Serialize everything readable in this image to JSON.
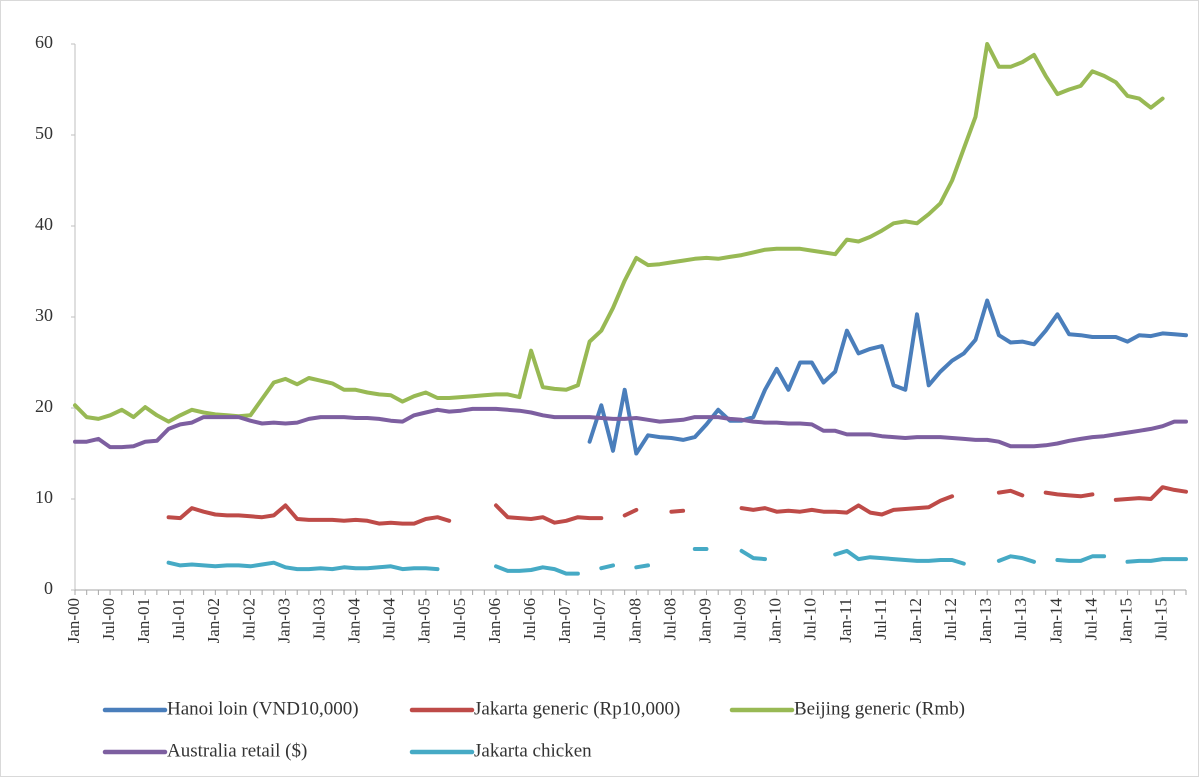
{
  "chart_data": {
    "type": "line",
    "categories": [
      "Jan-00",
      null,
      null,
      "Jul-00",
      null,
      null,
      "Jan-01",
      null,
      null,
      "Jul-01",
      null,
      null,
      "Jan-02",
      null,
      null,
      "Jul-02",
      null,
      null,
      "Jan-03",
      null,
      null,
      "Jul-03",
      null,
      null,
      "Jan-04",
      null,
      null,
      "Jul-04",
      null,
      null,
      "Jan-05",
      null,
      null,
      "Jul-05",
      null,
      null,
      "Jan-06",
      null,
      null,
      "Jul-06",
      null,
      null,
      "Jan-07",
      null,
      null,
      "Jul-07",
      null,
      null,
      "Jan-08",
      null,
      null,
      "Jul-08",
      null,
      null,
      "Jan-09",
      null,
      null,
      "Jul-09",
      null,
      null,
      "Jan-10",
      null,
      null,
      "Jul-10",
      null,
      null,
      "Jan-11",
      null,
      null,
      "Jul-11",
      null,
      null,
      "Jan-12",
      null,
      null,
      "Jul-12",
      null,
      null,
      "Jan-13",
      null,
      null,
      "Jul-13",
      null,
      null,
      "Jan-14",
      null,
      null,
      "Jul-14",
      null,
      null,
      "Jan-15",
      null,
      null,
      "Jul-15",
      null,
      null
    ],
    "ylim": [
      0,
      60
    ],
    "yticks": [
      0,
      10,
      20,
      30,
      40,
      50,
      60
    ],
    "grid": false,
    "legend": "bottom",
    "series": [
      {
        "name": "Hanoi loin (VND10,000)",
        "color": "#4a7ebb",
        "values": [
          null,
          null,
          null,
          null,
          null,
          null,
          null,
          null,
          null,
          null,
          null,
          null,
          null,
          null,
          null,
          null,
          null,
          null,
          null,
          null,
          null,
          null,
          null,
          null,
          null,
          null,
          null,
          null,
          null,
          null,
          null,
          null,
          null,
          null,
          null,
          null,
          null,
          null,
          null,
          null,
          null,
          null,
          null,
          null,
          16.3,
          20.3,
          15.3,
          22,
          15,
          17,
          16.8,
          16.7,
          16.5,
          16.8,
          18.2,
          19.8,
          18.6,
          18.6,
          19,
          22,
          24.3,
          22,
          25,
          25,
          22.8,
          24,
          28.5,
          26,
          26.5,
          26.8,
          22.5,
          22,
          30.3,
          22.5,
          24,
          25.2,
          26,
          27.5,
          31.8,
          28,
          27.2,
          27.3,
          27,
          28.5,
          30.3,
          28.1,
          28,
          27.8,
          27.8,
          27.8,
          27.3,
          28,
          27.9,
          28.2,
          28.1,
          28
        ]
      },
      {
        "name": "Jakarta generic (Rp10,000)",
        "color": "#be4b48",
        "values": [
          null,
          null,
          null,
          null,
          null,
          null,
          null,
          null,
          8,
          7.9,
          9,
          8.6,
          8.3,
          8.2,
          8.2,
          8.1,
          8,
          8.2,
          9.3,
          7.8,
          7.7,
          7.7,
          7.7,
          7.6,
          7.7,
          7.6,
          7.3,
          7.4,
          7.3,
          7.3,
          7.8,
          8,
          7.6,
          null,
          null,
          null,
          9.3,
          8,
          7.9,
          7.8,
          8,
          7.4,
          7.6,
          8,
          7.9,
          7.9,
          null,
          8.2,
          8.8,
          null,
          null,
          8.6,
          8.7,
          null,
          null,
          null,
          null,
          9,
          8.8,
          9,
          8.6,
          8.7,
          8.6,
          8.8,
          8.6,
          8.6,
          8.5,
          9.3,
          8.5,
          8.3,
          8.8,
          8.9,
          9,
          9.1,
          9.8,
          10.3,
          null,
          null,
          null,
          10.7,
          10.9,
          10.4,
          null,
          10.7,
          10.5,
          10.4,
          10.3,
          10.5,
          null,
          9.9,
          10,
          10.1,
          10,
          11.3,
          11,
          10.8
        ]
      },
      {
        "name": "Beijing generic (Rmb)",
        "color": "#98b954",
        "values": [
          20.3,
          19,
          18.8,
          19.2,
          19.8,
          19,
          20.1,
          19.2,
          18.5,
          19.2,
          19.8,
          19.5,
          19.3,
          19.2,
          19.1,
          19.2,
          21,
          22.8,
          23.2,
          22.6,
          23.3,
          23,
          22.7,
          22,
          22,
          21.7,
          21.5,
          21.4,
          20.7,
          21.3,
          21.7,
          21.1,
          21.1,
          21.2,
          21.3,
          21.4,
          21.5,
          21.5,
          21.2,
          26.3,
          22.3,
          22.1,
          22,
          22.5,
          27.3,
          28.5,
          31,
          34,
          36.5,
          35.7,
          35.8,
          36,
          36.2,
          36.4,
          36.5,
          36.4,
          36.6,
          36.8,
          37.1,
          37.4,
          37.5,
          37.5,
          37.5,
          37.3,
          37.1,
          36.9,
          38.5,
          38.3,
          38.8,
          39.5,
          40.3,
          40.5,
          40.3,
          41.3,
          42.5,
          45,
          48.5,
          52,
          60,
          57.5,
          57.5,
          58,
          58.8,
          56.5,
          54.5,
          55,
          55.4,
          57,
          56.5,
          55.8,
          54.3,
          54,
          53,
          54,
          null,
          null
        ]
      },
      {
        "name": "Australia retail ($)",
        "color": "#7d5fa0",
        "values": [
          16.3,
          16.3,
          16.6,
          15.7,
          15.7,
          15.8,
          16.3,
          16.4,
          17.7,
          18.2,
          18.4,
          19,
          19,
          19,
          19,
          18.6,
          18.3,
          18.4,
          18.3,
          18.4,
          18.8,
          19,
          19,
          19,
          18.9,
          18.9,
          18.8,
          18.6,
          18.5,
          19.2,
          19.5,
          19.8,
          19.6,
          19.7,
          19.9,
          19.9,
          19.9,
          19.8,
          19.7,
          19.5,
          19.2,
          19,
          19,
          19,
          19,
          18.9,
          18.8,
          18.8,
          18.9,
          18.7,
          18.5,
          18.6,
          18.7,
          19,
          19,
          19,
          18.8,
          18.7,
          18.5,
          18.4,
          18.4,
          18.3,
          18.3,
          18.2,
          17.5,
          17.5,
          17.1,
          17.1,
          17.1,
          16.9,
          16.8,
          16.7,
          16.8,
          16.8,
          16.8,
          16.7,
          16.6,
          16.5,
          16.5,
          16.3,
          15.8,
          15.8,
          15.8,
          15.9,
          16.1,
          16.4,
          16.6,
          16.8,
          16.9,
          17.1,
          17.3,
          17.5,
          17.7,
          18,
          18.5,
          18.5
        ]
      },
      {
        "name": "Jakarta chicken",
        "color": "#46aac5",
        "values": [
          null,
          null,
          null,
          null,
          null,
          null,
          null,
          null,
          3,
          2.7,
          2.8,
          2.7,
          2.6,
          2.7,
          2.7,
          2.6,
          2.8,
          3,
          2.5,
          2.3,
          2.3,
          2.4,
          2.3,
          2.5,
          2.4,
          2.4,
          2.5,
          2.6,
          2.3,
          2.4,
          2.4,
          2.3,
          null,
          null,
          null,
          null,
          2.6,
          2.1,
          2.1,
          2.2,
          2.5,
          2.3,
          1.8,
          1.8,
          null,
          2.4,
          2.7,
          null,
          2.5,
          2.7,
          null,
          null,
          null,
          4.5,
          4.5,
          null,
          null,
          4.3,
          3.5,
          3.4,
          null,
          null,
          null,
          null,
          null,
          3.9,
          4.3,
          3.4,
          3.6,
          3.5,
          3.4,
          3.3,
          3.2,
          3.2,
          3.3,
          3.3,
          2.9,
          null,
          null,
          3.2,
          3.7,
          3.5,
          3.1,
          null,
          3.3,
          3.2,
          3.2,
          3.7,
          3.7,
          null,
          3.1,
          3.2,
          3.2,
          3.4,
          3.4,
          3.4
        ]
      }
    ]
  }
}
